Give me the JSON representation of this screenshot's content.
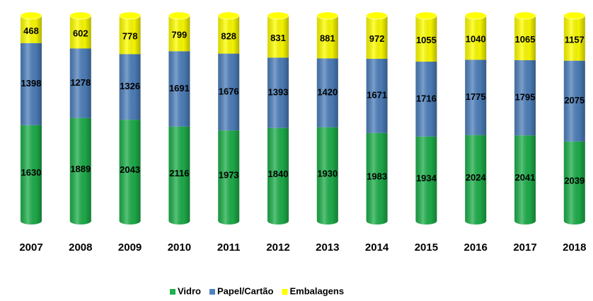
{
  "chart_data": {
    "type": "bar",
    "stacked": "percent",
    "categories": [
      "2007",
      "2008",
      "2009",
      "2010",
      "2011",
      "2012",
      "2013",
      "2014",
      "2015",
      "2016",
      "2017",
      "2018"
    ],
    "series": [
      {
        "name": "Vidro",
        "color": "#1fb04c",
        "values": [
          1630,
          1889,
          2043,
          2116,
          1973,
          1840,
          1930,
          1983,
          1934,
          2024,
          2041,
          2039
        ]
      },
      {
        "name": "Papel/Cartão",
        "color": "#4f81bd",
        "values": [
          1398,
          1278,
          1326,
          1691,
          1676,
          1393,
          1420,
          1671,
          1716,
          1775,
          1795,
          2075
        ]
      },
      {
        "name": "Embalagens",
        "color": "#ffff00",
        "values": [
          468,
          602,
          778,
          799,
          828,
          831,
          881,
          972,
          1055,
          1040,
          1065,
          1157
        ]
      }
    ],
    "legend": "bottom"
  }
}
